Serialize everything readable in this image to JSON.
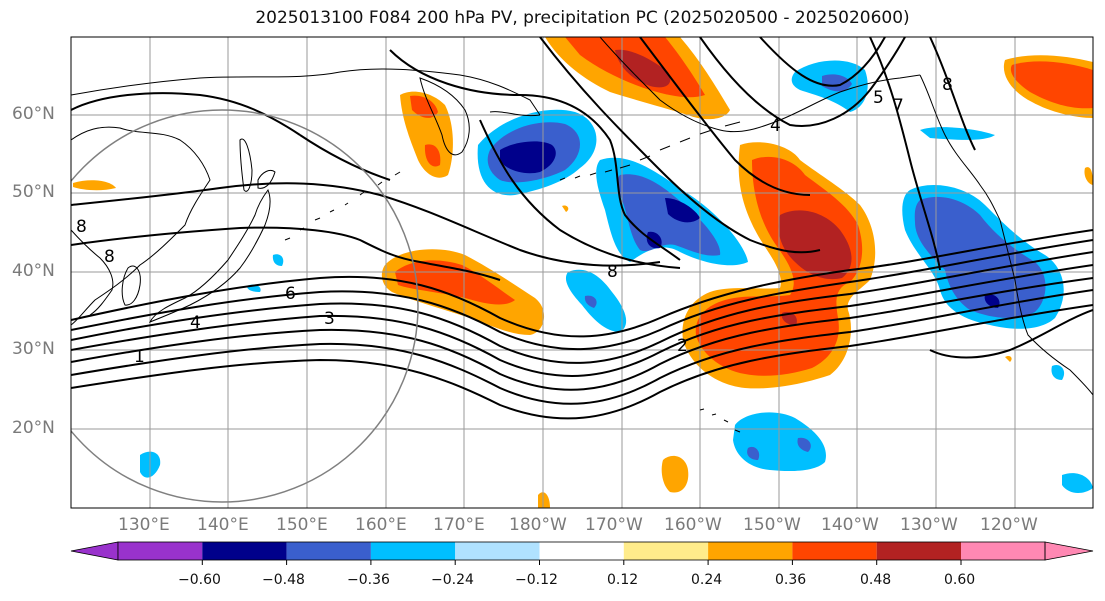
{
  "title": "2025013100 F084 200 hPa PV, precipitation PC (2025020500 - 2025020600)",
  "lat_labels": [
    "60°N",
    "50°N",
    "40°N",
    "30°N",
    "20°N"
  ],
  "lon_labels": [
    "130°E",
    "140°E",
    "150°E",
    "160°E",
    "170°E",
    "180°W",
    "170°W",
    "160°W",
    "150°W",
    "140°W",
    "130°W",
    "120°W"
  ],
  "contour_labels": [
    "8",
    "8",
    "6",
    "4",
    "3",
    "1",
    "8",
    "2",
    "7",
    "5",
    "8",
    "4"
  ],
  "colorbar": {
    "ticks": [
      "−0.60",
      "−0.48",
      "−0.36",
      "−0.24",
      "−0.12",
      "0.12",
      "0.24",
      "0.36",
      "0.48",
      "0.60"
    ],
    "colors": [
      "#9932cc",
      "#00008b",
      "#3a5fcd",
      "#00bfff",
      "#b0e2ff",
      "#ffffff",
      "#ffec8b",
      "#ffa500",
      "#ff4500",
      "#b22222",
      "#ff88b3"
    ]
  }
}
